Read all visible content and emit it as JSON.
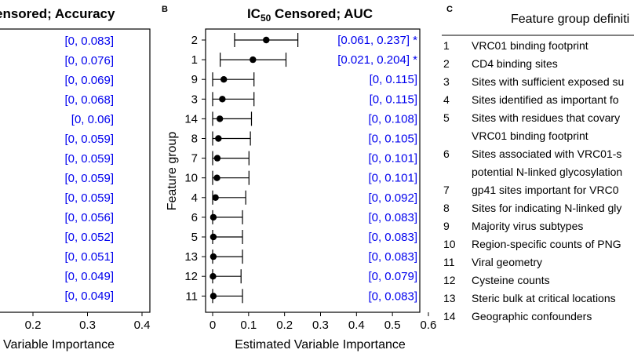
{
  "panel_a": {
    "title": "ensored;  Accuracy",
    "xlabel": "l Variable Importance",
    "tick_labels": [
      "0.2",
      "0.3",
      "0.4"
    ]
  },
  "panel_b": {
    "letter": "B",
    "title_prefix": "IC",
    "title_sub": "50",
    "title_suffix": " Censored;  AUC",
    "ylabel": "Feature group",
    "xlabel": "Estimated Variable Importance",
    "tick_labels": [
      "0",
      "0.1",
      "0.2",
      "0.3",
      "0.4",
      "0.5",
      "0.6"
    ]
  },
  "panel_c": {
    "letter": "C",
    "title": "Feature group definiti",
    "items": [
      {
        "num": "1",
        "lines": [
          "VRC01 binding footprint"
        ]
      },
      {
        "num": "2",
        "lines": [
          "CD4 binding sites"
        ]
      },
      {
        "num": "3",
        "lines": [
          "Sites with sufficient exposed su"
        ]
      },
      {
        "num": "4",
        "lines": [
          "Sites identified as important fo"
        ]
      },
      {
        "num": "5",
        "lines": [
          "Sites with residues that covary",
          "VRC01 binding footprint"
        ]
      },
      {
        "num": "6",
        "lines": [
          "Sites associated with VRC01-s",
          "potential N-linked glycosylation"
        ]
      },
      {
        "num": "7",
        "lines": [
          "gp41 sites important for VRC0"
        ]
      },
      {
        "num": "8",
        "lines": [
          "Sites for indicating N-linked gly"
        ]
      },
      {
        "num": "9",
        "lines": [
          "Majority virus subtypes"
        ]
      },
      {
        "num": "10",
        "lines": [
          "Region-specific counts of PNG"
        ]
      },
      {
        "num": "11",
        "lines": [
          "Viral geometry"
        ]
      },
      {
        "num": "12",
        "lines": [
          "Cysteine counts"
        ]
      },
      {
        "num": "13",
        "lines": [
          "Steric bulk at critical locations"
        ]
      },
      {
        "num": "14",
        "lines": [
          "Geographic confounders"
        ]
      }
    ]
  },
  "chart_data": [
    {
      "type": "scatter",
      "panel": "A (partially visible)",
      "title": "ensored;  Accuracy",
      "xlabel": "l Variable Importance",
      "x_ticks": [
        0.2,
        0.3,
        0.4
      ],
      "interval_labels": [
        "[0, 0.083]",
        "[0, 0.076]",
        "[0, 0.069]",
        "[0, 0.068]",
        "[0, 0.06]",
        "[0, 0.059]",
        "[0, 0.059]",
        "[0, 0.059]",
        "[0, 0.059]",
        "[0, 0.056]",
        "[0, 0.052]",
        "[0, 0.051]",
        "[0, 0.049]",
        "[0, 0.049]"
      ],
      "label_color": "#0000ee"
    },
    {
      "type": "scatter",
      "panel": "B",
      "title": "IC50 Censored;  AUC",
      "xlabel": "Estimated Variable Importance",
      "ylabel": "Feature group",
      "xlim": [
        -0.02,
        0.6
      ],
      "x_ticks": [
        0,
        0.1,
        0.2,
        0.3,
        0.4,
        0.5,
        0.6
      ],
      "groups": [
        "2",
        "1",
        "9",
        "3",
        "14",
        "8",
        "7",
        "10",
        "4",
        "6",
        "5",
        "13",
        "12",
        "11"
      ],
      "estimates": [
        0.149,
        0.112,
        0.031,
        0.027,
        0.02,
        0.016,
        0.013,
        0.012,
        0.008,
        0.002,
        0.002,
        0.002,
        0.001,
        0.002
      ],
      "ci_lower": [
        0.061,
        0.021,
        0,
        0,
        0,
        0,
        0,
        0,
        0,
        0,
        0,
        0,
        0,
        0
      ],
      "ci_upper": [
        0.237,
        0.204,
        0.115,
        0.115,
        0.108,
        0.105,
        0.101,
        0.101,
        0.092,
        0.083,
        0.083,
        0.083,
        0.079,
        0.083
      ],
      "interval_labels": [
        "[0.061, 0.237] *",
        "[0.021, 0.204] *",
        "[0, 0.115]",
        "[0, 0.115]",
        "[0, 0.108]",
        "[0, 0.105]",
        "[0, 0.101]",
        "[0, 0.101]",
        "[0, 0.092]",
        "[0, 0.083]",
        "[0, 0.083]",
        "[0, 0.083]",
        "[0, 0.079]",
        "[0, 0.083]"
      ],
      "label_color": "#0000ee",
      "grid": false
    }
  ]
}
